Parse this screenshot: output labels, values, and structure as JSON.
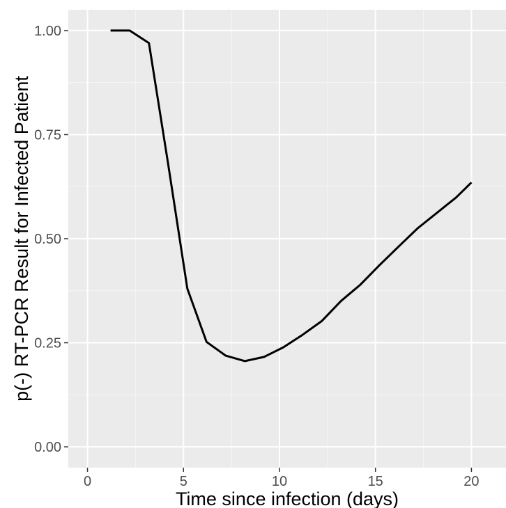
{
  "chart_data": {
    "type": "line",
    "title": "",
    "xlabel": "Time since infection (days)",
    "ylabel": "p(-) RT-PCR Result for Infected Patient",
    "xlim": [
      -1,
      21.8
    ],
    "ylim": [
      -0.05,
      1.05
    ],
    "x_ticks": [
      0,
      5,
      10,
      15,
      20
    ],
    "x_tick_labels": [
      "0",
      "5",
      "10",
      "15",
      "20"
    ],
    "y_ticks": [
      0,
      0.25,
      0.5,
      0.75,
      1
    ],
    "y_tick_labels": [
      "0.00",
      "0.25",
      "0.50",
      "0.75",
      "1.00"
    ],
    "grid": true,
    "series": [
      {
        "x": [
          1.2,
          2.2,
          3.2,
          4.2,
          5.2,
          6.2,
          7.2,
          8.2,
          9.2,
          10.2,
          11.2,
          12.2,
          13.2,
          14.2,
          15.2,
          16.2,
          17.2,
          18.2,
          19.2,
          20.0
        ],
        "y": [
          1.0,
          1.0,
          0.97,
          0.68,
          0.38,
          0.252,
          0.219,
          0.206,
          0.216,
          0.239,
          0.269,
          0.302,
          0.35,
          0.389,
          0.436,
          0.481,
          0.525,
          0.562,
          0.599,
          0.635
        ]
      }
    ],
    "colors": {
      "panel": "#ebebeb",
      "grid_major": "#ffffff",
      "grid_minor": "#f5f5f5",
      "line": "#000000",
      "tick_text": "#4d4d4d",
      "tick_mark": "#333333"
    }
  }
}
